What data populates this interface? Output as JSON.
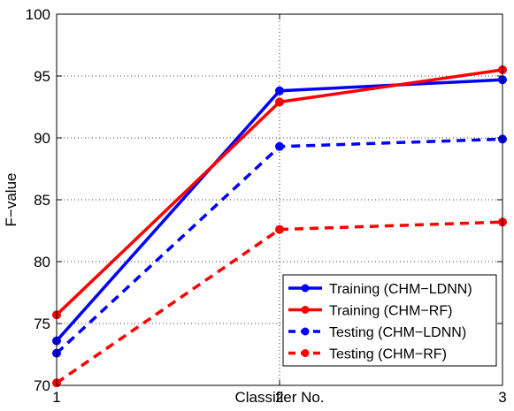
{
  "chart_data": {
    "type": "line",
    "title": "",
    "xlabel": "Classifier No.",
    "ylabel": "F−value",
    "x": [
      1,
      2,
      3
    ],
    "xlim": [
      1,
      3
    ],
    "ylim": [
      70,
      100
    ],
    "xticks": [
      "1",
      "2",
      "3"
    ],
    "yticks": [
      "70",
      "75",
      "80",
      "85",
      "90",
      "95",
      "100"
    ],
    "grid": "dotted",
    "legend_position": "bottom-right",
    "series": [
      {
        "name": "Training (CHM−LDNN)",
        "values": [
          73.6,
          93.8,
          94.7
        ],
        "color": "#0000ff",
        "style": "solid"
      },
      {
        "name": "Training (CHM−RF)",
        "values": [
          75.7,
          92.9,
          95.5
        ],
        "color": "#ff0000",
        "style": "solid"
      },
      {
        "name": "Testing (CHM−LDNN)",
        "values": [
          72.6,
          89.3,
          89.9
        ],
        "color": "#0000ff",
        "style": "dashed"
      },
      {
        "name": "Testing (CHM−RF)",
        "values": [
          70.2,
          82.6,
          83.2
        ],
        "color": "#ff0000",
        "style": "dashed"
      }
    ]
  }
}
